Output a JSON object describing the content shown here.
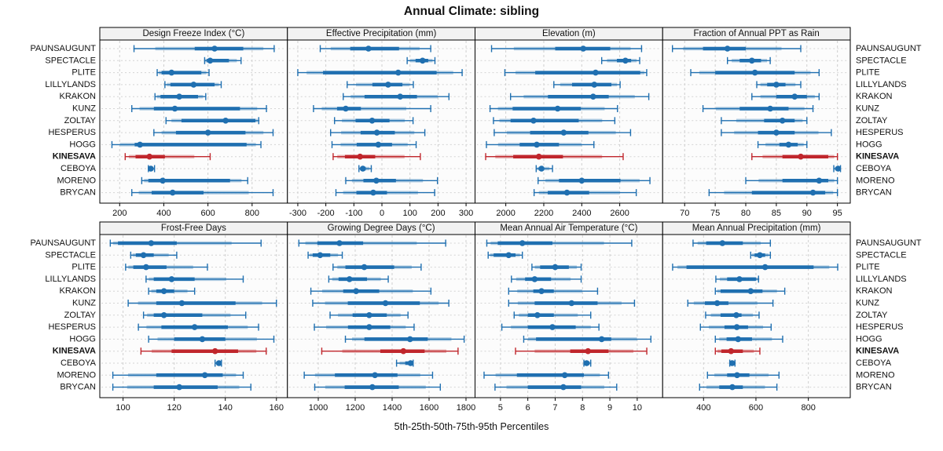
{
  "title": "Annual Climate: sibling",
  "caption": "5th-25th-50th-75th-95th Percentiles",
  "sites": [
    "PAUNSAUGUNT",
    "SPECTACLE",
    "PLITE",
    "LILLYLANDS",
    "KRAKON",
    "KUNZ",
    "ZOLTAY",
    "HESPERUS",
    "HOGG",
    "KINESAVA",
    "CEBOYA",
    "MORENO",
    "BRYCAN"
  ],
  "highlight_site": "KINESAVA",
  "percentiles": [
    5,
    25,
    50,
    75,
    95
  ],
  "colors": {
    "series": "#1F6FB0",
    "highlight": "#C0262C",
    "grid": "#CFCFCF",
    "row_guide": "#D4D4D4",
    "header_bg": "#F2F2F2",
    "border": "#000000",
    "panel_bg": "#FCFCFC",
    "text": "#111111"
  },
  "chart_data": [
    {
      "type": "interval",
      "title": "Design Freeze Index (°C)",
      "xlim": [
        110,
        960
      ],
      "ticks": [
        200,
        400,
        600,
        800
      ],
      "values": [
        [
          265,
          540,
          630,
          760,
          900
        ],
        [
          585,
          595,
          610,
          695,
          750
        ],
        [
          370,
          390,
          435,
          570,
          605
        ],
        [
          405,
          430,
          535,
          630,
          660
        ],
        [
          360,
          385,
          470,
          555,
          590
        ],
        [
          255,
          355,
          450,
          745,
          865
        ],
        [
          410,
          480,
          680,
          815,
          830
        ],
        [
          355,
          455,
          600,
          770,
          895
        ],
        [
          165,
          268,
          292,
          775,
          840
        ],
        [
          225,
          272,
          335,
          405,
          610
        ],
        [
          330,
          336,
          341,
          348,
          358
        ],
        [
          300,
          330,
          395,
          700,
          780
        ],
        [
          255,
          345,
          440,
          580,
          895
        ]
      ]
    },
    {
      "type": "interval",
      "title": "Effective Precipitation (mm)",
      "xlim": [
        -337,
        332
      ],
      "ticks": [
        -300,
        -200,
        -100,
        0,
        100,
        200,
        300
      ],
      "values": [
        [
          -220,
          -113,
          -48,
          61,
          174
        ],
        [
          90,
          120,
          145,
          165,
          189
        ],
        [
          -300,
          -210,
          58,
          195,
          286
        ],
        [
          -124,
          -34,
          22,
          73,
          112
        ],
        [
          -138,
          -62,
          65,
          125,
          239
        ],
        [
          -244,
          -160,
          -129,
          -75,
          174
        ],
        [
          -169,
          -94,
          -35,
          27,
          111
        ],
        [
          -183,
          -76,
          -18,
          46,
          153
        ],
        [
          -178,
          -90,
          -13,
          36,
          122
        ],
        [
          -174,
          -132,
          -78,
          -24,
          137
        ],
        [
          -82,
          -74,
          -68,
          -58,
          -38
        ],
        [
          -129,
          -66,
          -20,
          50,
          198
        ],
        [
          -164,
          -91,
          -31,
          18,
          188
        ]
      ]
    },
    {
      "type": "interval",
      "title": "Elevation (m)",
      "xlim": [
        1838,
        2826
      ],
      "ticks": [
        2000,
        2200,
        2400,
        2600
      ],
      "values": [
        [
          1925,
          2260,
          2408,
          2550,
          2715
        ],
        [
          2505,
          2585,
          2630,
          2660,
          2705
        ],
        [
          1995,
          2155,
          2473,
          2708,
          2742
        ],
        [
          2253,
          2349,
          2466,
          2556,
          2602
        ],
        [
          2025,
          2222,
          2460,
          2542,
          2753
        ],
        [
          1917,
          2036,
          2273,
          2395,
          2588
        ],
        [
          1935,
          2025,
          2146,
          2384,
          2574
        ],
        [
          1939,
          2128,
          2305,
          2435,
          2657
        ],
        [
          1898,
          2073,
          2163,
          2280,
          2464
        ],
        [
          1894,
          2039,
          2174,
          2301,
          2618
        ],
        [
          2160,
          2176,
          2188,
          2199,
          2246
        ],
        [
          2170,
          2280,
          2400,
          2604,
          2759
        ],
        [
          2149,
          2221,
          2322,
          2439,
          2687
        ]
      ]
    },
    {
      "type": "interval",
      "title": "Fraction of Annual PPT as Rain",
      "xlim": [
        66.4,
        97.1
      ],
      "ticks": [
        70,
        75,
        80,
        85,
        90,
        95
      ],
      "values": [
        [
          68,
          73,
          77,
          80,
          89
        ],
        [
          77,
          79,
          81,
          82.5,
          84
        ],
        [
          71,
          75,
          81.5,
          88,
          92
        ],
        [
          81.8,
          83.5,
          85,
          86.5,
          89
        ],
        [
          81,
          85,
          88,
          90,
          92
        ],
        [
          73,
          79,
          84,
          87,
          91
        ],
        [
          76,
          83,
          86,
          88,
          90
        ],
        [
          76,
          82,
          85,
          88,
          94
        ],
        [
          82,
          85.5,
          87,
          88.5,
          90
        ],
        [
          81,
          86,
          89,
          93.5,
          95
        ],
        [
          94.4,
          94.8,
          95.1,
          95.3,
          95.5
        ],
        [
          80,
          86,
          92,
          93.5,
          95
        ],
        [
          74,
          81,
          91,
          93,
          95
        ]
      ]
    },
    {
      "type": "interval",
      "title": "Frost-Free Days",
      "xlim": [
        90.9,
        164.3
      ],
      "ticks": [
        100,
        120,
        140,
        160
      ],
      "values": [
        [
          95,
          98,
          111,
          121,
          154
        ],
        [
          103,
          105,
          108,
          112,
          121
        ],
        [
          101,
          104,
          109,
          117,
          133
        ],
        [
          109,
          112,
          119,
          128,
          147
        ],
        [
          110,
          113,
          116,
          120,
          128
        ],
        [
          102,
          113,
          123,
          144,
          160
        ],
        [
          108,
          112,
          116,
          131,
          148
        ],
        [
          106,
          115,
          128,
          141,
          153
        ],
        [
          110,
          120,
          131,
          140,
          159
        ],
        [
          107,
          119,
          136,
          145,
          156
        ],
        [
          136,
          137,
          137.5,
          138,
          138.5
        ],
        [
          96,
          113,
          132,
          139,
          147
        ],
        [
          96,
          112,
          122,
          137,
          150
        ]
      ]
    },
    {
      "type": "interval",
      "title": "Growing Degree Days (°C)",
      "xlim": [
        833,
        1849
      ],
      "ticks": [
        1000,
        1200,
        1400,
        1600,
        1800
      ],
      "values": [
        [
          895,
          995,
          1115,
          1243,
          1690
        ],
        [
          945,
          970,
          1010,
          1065,
          1130
        ],
        [
          1080,
          1147,
          1249,
          1411,
          1557
        ],
        [
          1057,
          1110,
          1169,
          1264,
          1379
        ],
        [
          960,
          1135,
          1205,
          1330,
          1610
        ],
        [
          970,
          1160,
          1364,
          1550,
          1707
        ],
        [
          1064,
          1186,
          1276,
          1371,
          1486
        ],
        [
          979,
          1161,
          1276,
          1390,
          1519
        ],
        [
          1147,
          1250,
          1497,
          1593,
          1790
        ],
        [
          1019,
          1336,
          1461,
          1576,
          1757
        ],
        [
          1424,
          1471,
          1500,
          1507,
          1514
        ],
        [
          924,
          1090,
          1307,
          1429,
          1619
        ],
        [
          981,
          1143,
          1293,
          1436,
          1661
        ]
      ]
    },
    {
      "type": "interval",
      "title": "Mean Annual Air Temperature (°C)",
      "xlim": [
        4.07,
        10.93
      ],
      "ticks": [
        5,
        6,
        7,
        8,
        9,
        10
      ],
      "values": [
        [
          4.5,
          4.9,
          5.8,
          6.9,
          9.8
        ],
        [
          4.55,
          4.75,
          5.3,
          5.55,
          5.8
        ],
        [
          6.15,
          6.45,
          7.0,
          7.5,
          7.95
        ],
        [
          5.4,
          5.9,
          6.25,
          6.85,
          7.95
        ],
        [
          5.3,
          6.2,
          6.5,
          6.95,
          8.55
        ],
        [
          5.3,
          6.25,
          7.6,
          8.55,
          9.9
        ],
        [
          5.5,
          6.0,
          6.35,
          6.95,
          8.3
        ],
        [
          5.05,
          6.0,
          6.9,
          7.75,
          8.6
        ],
        [
          5.85,
          6.3,
          8.7,
          9.05,
          10.5
        ],
        [
          5.55,
          7.55,
          8.2,
          8.95,
          10.35
        ],
        [
          8.05,
          8.1,
          8.15,
          8.25,
          8.3
        ],
        [
          4.4,
          5.6,
          7.35,
          8.05,
          8.95
        ],
        [
          4.8,
          6.0,
          7.3,
          7.95,
          9.25
        ]
      ]
    },
    {
      "type": "interval",
      "title": "Mean Annual Precipitation (mm)",
      "xlim": [
        244,
        960
      ],
      "ticks": [
        400,
        600,
        800
      ],
      "values": [
        [
          360,
          410,
          472,
          550,
          655
        ],
        [
          580,
          595,
          615,
          635,
          655
        ],
        [
          282,
          335,
          635,
          820,
          912
        ],
        [
          447,
          490,
          537,
          600,
          610
        ],
        [
          445,
          465,
          580,
          625,
          710
        ],
        [
          340,
          405,
          452,
          495,
          665
        ],
        [
          408,
          465,
          525,
          545,
          612
        ],
        [
          388,
          480,
          527,
          570,
          658
        ],
        [
          445,
          488,
          532,
          585,
          702
        ],
        [
          445,
          468,
          505,
          550,
          615
        ],
        [
          500,
          505,
          509,
          513,
          520
        ],
        [
          415,
          490,
          528,
          575,
          688
        ],
        [
          385,
          460,
          510,
          550,
          680
        ]
      ]
    }
  ]
}
